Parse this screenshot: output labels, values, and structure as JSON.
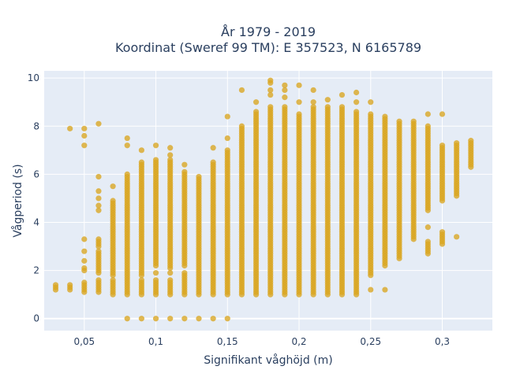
{
  "chart_data": {
    "type": "scatter",
    "title_lines": [
      "År 1979 - 2019",
      "Koordinat (Sweref 99 TM): E 357523, N 6165789"
    ],
    "xlabel": "Signifikant våghöjd (m)",
    "ylabel": "Vågperiod (s)",
    "xlim": [
      0.022,
      0.335
    ],
    "ylim": [
      -0.5,
      10.3
    ],
    "x_ticks": [
      0.05,
      0.1,
      0.15,
      0.2,
      0.25,
      0.3
    ],
    "x_tick_labels": [
      "0,05",
      "0,1",
      "0,15",
      "0,2",
      "0,25",
      "0,3"
    ],
    "y_ticks": [
      0,
      2,
      4,
      6,
      8,
      10
    ],
    "y_tick_labels": [
      "0",
      "2",
      "4",
      "6",
      "8",
      "10"
    ],
    "grid": true,
    "legend": "none",
    "colors": {
      "marker": "#DAA520",
      "plot_bg": "#E5ECF6",
      "grid": "#ffffff",
      "text": "#2a3f5f"
    },
    "columns": [
      {
        "x": 0.03,
        "ranges": [
          [
            1.2,
            1.45
          ]
        ],
        "points": []
      },
      {
        "x": 0.04,
        "ranges": [
          [
            1.2,
            1.45
          ]
        ],
        "points": [
          7.9
        ]
      },
      {
        "x": 0.05,
        "ranges": [
          [
            1.1,
            1.5
          ],
          [
            2.0,
            2.1
          ]
        ],
        "points": [
          2.4,
          2.8,
          3.3,
          7.2,
          7.6,
          7.9
        ]
      },
      {
        "x": 0.06,
        "ranges": [
          [
            1.1,
            1.6
          ],
          [
            1.9,
            2.8
          ],
          [
            3.0,
            3.3
          ]
        ],
        "points": [
          4.5,
          4.7,
          5.0,
          5.3,
          5.9,
          8.1
        ]
      },
      {
        "x": 0.07,
        "ranges": [
          [
            1.0,
            1.6
          ],
          [
            1.8,
            4.9
          ]
        ],
        "points": [
          5.5
        ]
      },
      {
        "x": 0.08,
        "ranges": [
          [
            1.0,
            1.6
          ],
          [
            1.7,
            6.0
          ]
        ],
        "points": [
          0.0,
          7.2,
          7.5
        ]
      },
      {
        "x": 0.09,
        "ranges": [
          [
            1.0,
            1.6
          ],
          [
            1.8,
            6.5
          ]
        ],
        "points": [
          0.0,
          7.0
        ]
      },
      {
        "x": 0.1,
        "ranges": [
          [
            1.0,
            1.6
          ],
          [
            2.2,
            6.5
          ]
        ],
        "points": [
          0.0,
          1.9,
          6.6,
          7.2
        ]
      },
      {
        "x": 0.11,
        "ranges": [
          [
            1.0,
            1.6
          ],
          [
            2.1,
            6.6
          ]
        ],
        "points": [
          0.0,
          1.9,
          6.8,
          7.1
        ]
      },
      {
        "x": 0.12,
        "ranges": [
          [
            1.0,
            1.9
          ],
          [
            2.2,
            6.1
          ]
        ],
        "points": [
          0.0,
          6.4
        ]
      },
      {
        "x": 0.13,
        "ranges": [
          [
            1.0,
            5.9
          ]
        ],
        "points": [
          0.0
        ]
      },
      {
        "x": 0.14,
        "ranges": [
          [
            1.0,
            6.5
          ]
        ],
        "points": [
          0.0,
          7.1
        ]
      },
      {
        "x": 0.15,
        "ranges": [
          [
            1.0,
            7.0
          ]
        ],
        "points": [
          0.0,
          7.5,
          8.4
        ]
      },
      {
        "x": 0.16,
        "ranges": [
          [
            1.0,
            8.0
          ]
        ],
        "points": [
          9.5
        ]
      },
      {
        "x": 0.17,
        "ranges": [
          [
            1.0,
            8.6
          ]
        ],
        "points": [
          9.0
        ]
      },
      {
        "x": 0.18,
        "ranges": [
          [
            1.0,
            8.8
          ]
        ],
        "points": [
          9.3,
          9.5,
          9.8,
          9.9
        ]
      },
      {
        "x": 0.19,
        "ranges": [
          [
            1.0,
            8.8
          ]
        ],
        "points": [
          9.2,
          9.5,
          9.7
        ]
      },
      {
        "x": 0.2,
        "ranges": [
          [
            1.0,
            8.5
          ]
        ],
        "points": [
          9.0,
          9.7
        ]
      },
      {
        "x": 0.21,
        "ranges": [
          [
            1.0,
            8.8
          ]
        ],
        "points": [
          9.0,
          9.5
        ]
      },
      {
        "x": 0.22,
        "ranges": [
          [
            1.0,
            8.8
          ]
        ],
        "points": [
          9.1
        ]
      },
      {
        "x": 0.23,
        "ranges": [
          [
            1.0,
            8.8
          ]
        ],
        "points": [
          9.3
        ]
      },
      {
        "x": 0.24,
        "ranges": [
          [
            1.0,
            8.6
          ]
        ],
        "points": [
          9.0,
          9.4
        ]
      },
      {
        "x": 0.25,
        "ranges": [
          [
            1.8,
            8.5
          ]
        ],
        "points": [
          1.2,
          9.0
        ]
      },
      {
        "x": 0.26,
        "ranges": [
          [
            2.2,
            8.4
          ]
        ],
        "points": [
          1.2
        ]
      },
      {
        "x": 0.27,
        "ranges": [
          [
            2.5,
            8.2
          ]
        ],
        "points": []
      },
      {
        "x": 0.28,
        "ranges": [
          [
            3.3,
            8.2
          ]
        ],
        "points": []
      },
      {
        "x": 0.29,
        "ranges": [
          [
            2.7,
            3.2
          ],
          [
            4.5,
            8.0
          ]
        ],
        "points": [
          3.8,
          8.5
        ]
      },
      {
        "x": 0.3,
        "ranges": [
          [
            3.1,
            3.6
          ],
          [
            4.9,
            7.2
          ]
        ],
        "points": [
          8.5
        ]
      },
      {
        "x": 0.31,
        "ranges": [
          [
            5.1,
            7.3
          ]
        ],
        "points": [
          3.4
        ]
      },
      {
        "x": 0.32,
        "ranges": [
          [
            6.3,
            7.4
          ]
        ],
        "points": []
      }
    ]
  }
}
